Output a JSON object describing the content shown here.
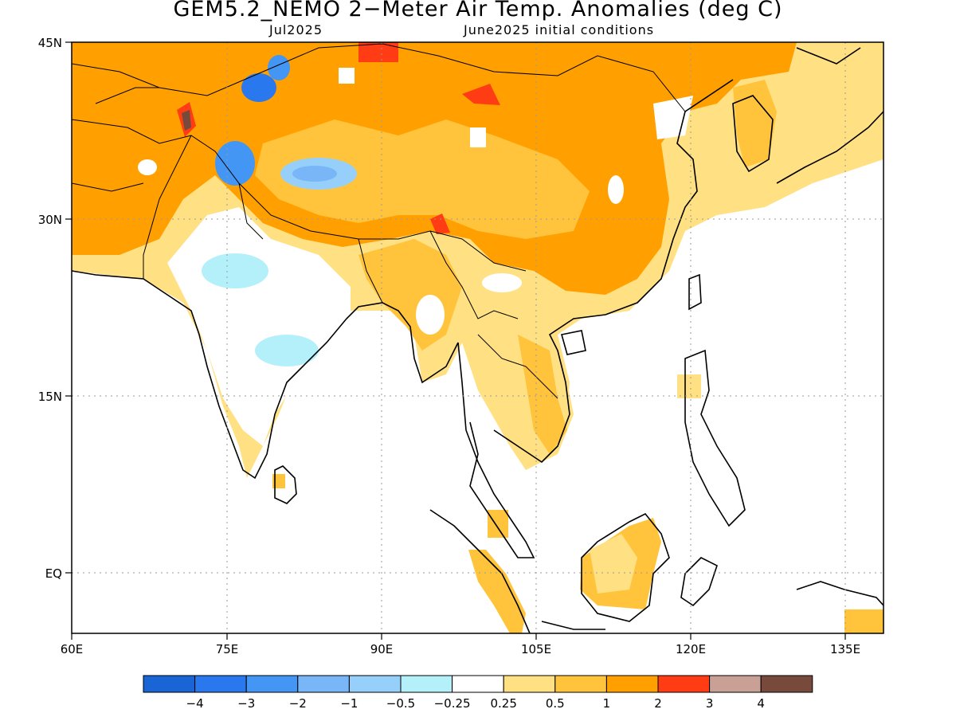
{
  "title": "GEM5.2_NEMO 2−Meter Air Temp. Anomalies (deg C)",
  "subtitle_left": "Jul2025",
  "subtitle_right": "June2025 initial conditions",
  "lat_labels": [
    "45N",
    "30N",
    "15N",
    "EQ"
  ],
  "lon_labels": [
    "60E",
    "75E",
    "90E",
    "105E",
    "120E",
    "135E"
  ],
  "legend": {
    "colors": [
      "#1965d6",
      "#2a78ee",
      "#4496f4",
      "#78b6f8",
      "#96d0fa",
      "#b4f0fa",
      "#ffffff",
      "#ffe082",
      "#ffc43c",
      "#ffa000",
      "#ff3c14",
      "#c8a096",
      "#784a3c"
    ],
    "labels": [
      "−4",
      "−3",
      "−2",
      "−1",
      "−0.5",
      "−0.25",
      "0.25",
      "0.5",
      "1",
      "2",
      "3",
      "4"
    ]
  }
}
